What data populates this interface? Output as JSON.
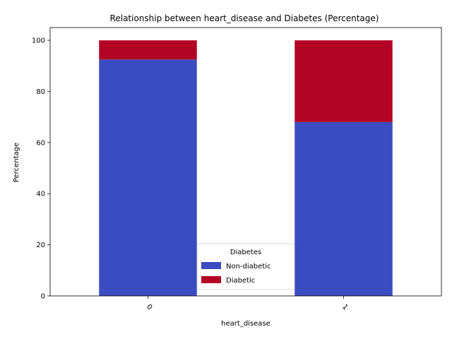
{
  "chart_data": {
    "type": "bar",
    "stacked": true,
    "title": "Relationship between heart_disease and Diabetes (Percentage)",
    "xlabel": "heart_disease",
    "ylabel": "Percentage",
    "categories": [
      "0",
      "1"
    ],
    "ylim": [
      0,
      105
    ],
    "yticks": [
      0,
      20,
      40,
      60,
      80,
      100
    ],
    "grid": false,
    "legend": {
      "title": "Diabetes",
      "placement": "bottom-center"
    },
    "series": [
      {
        "name": "Non-diabetic",
        "color": "#3b4cc0",
        "values": [
          92.5,
          68.0
        ]
      },
      {
        "name": "Diabetic",
        "color": "#b40426",
        "values": [
          7.5,
          32.0
        ]
      }
    ]
  }
}
